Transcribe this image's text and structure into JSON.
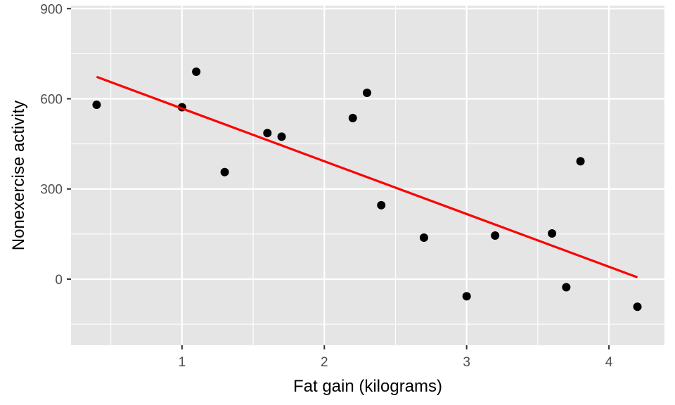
{
  "chart_data": {
    "type": "scatter",
    "xlabel": "Fat gain (kilograms)",
    "ylabel": "Nonexercise activity",
    "xlim": [
      0.22,
      4.39
    ],
    "ylim": [
      -220,
      910
    ],
    "x_ticks": [
      1,
      2,
      3,
      4
    ],
    "x_tick_labels": [
      "1",
      "2",
      "3",
      "4"
    ],
    "y_ticks": [
      0,
      300,
      600,
      900
    ],
    "y_tick_labels": [
      "0",
      "300",
      "600",
      "900"
    ],
    "grid": true,
    "legend": "none",
    "points": [
      {
        "x": 0.4,
        "y": 580
      },
      {
        "x": 1.0,
        "y": 572
      },
      {
        "x": 1.1,
        "y": 690
      },
      {
        "x": 1.3,
        "y": 356
      },
      {
        "x": 1.6,
        "y": 486
      },
      {
        "x": 1.7,
        "y": 474
      },
      {
        "x": 2.2,
        "y": 536
      },
      {
        "x": 2.3,
        "y": 620
      },
      {
        "x": 2.4,
        "y": 246
      },
      {
        "x": 2.7,
        "y": 138
      },
      {
        "x": 3.0,
        "y": -57
      },
      {
        "x": 3.2,
        "y": 145
      },
      {
        "x": 3.6,
        "y": 152
      },
      {
        "x": 3.7,
        "y": -27
      },
      {
        "x": 3.8,
        "y": 392
      },
      {
        "x": 4.2,
        "y": -92
      }
    ],
    "fit_line": {
      "x": [
        0.4,
        4.2
      ],
      "y": [
        673,
        6
      ]
    },
    "colors": {
      "panel": "#e5e5e5",
      "grid": "#ffffff",
      "points": "#000000",
      "fit_line": "#ff0000",
      "tick_labels": "#4d4d4d",
      "axis_titles": "#000000"
    }
  }
}
